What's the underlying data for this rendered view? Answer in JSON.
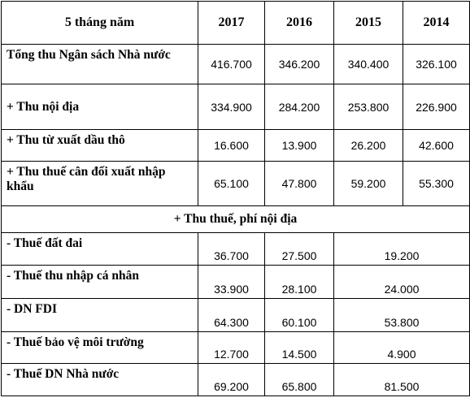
{
  "header": {
    "label": "5 tháng năm",
    "years": [
      "2017",
      "2016",
      "2015",
      "2014"
    ]
  },
  "rows": [
    {
      "label": "Tổng thu Ngân sách Nhà nước",
      "values": [
        "416.700",
        "346.200",
        "340.400",
        "326.100"
      ]
    },
    {
      "label": "+ Thu nội địa",
      "values": [
        "334.900",
        "284.200",
        "253.800",
        "226.900"
      ]
    },
    {
      "label": "+ Thu từ xuất dầu thô",
      "values": [
        "16.600",
        "13.900",
        "26.200",
        "42.600"
      ]
    },
    {
      "label": "+ Thu thuế cân đối xuất nhập khẩu",
      "values": [
        "65.100",
        "47.800",
        "59.200",
        "55.300"
      ]
    }
  ],
  "section_title": "+ Thu thuế, phí nội địa",
  "sub_rows": [
    {
      "label": "- Thuế đất đai",
      "values": [
        "36.700",
        "27.500",
        "19.200"
      ]
    },
    {
      "label": "- Thuế thu nhập cá nhân",
      "values": [
        "33.900",
        "28.100",
        "24.000"
      ]
    },
    {
      "label": "- DN FDI",
      "values": [
        "64.300",
        "60.100",
        "53.800"
      ]
    },
    {
      "label": "- Thuế bảo vệ môi trường",
      "values": [
        "12.700",
        "14.500",
        "4.900"
      ]
    },
    {
      "label": "- Thuế DN Nhà nước",
      "values": [
        "69.200",
        "65.800",
        "81.500"
      ]
    }
  ]
}
